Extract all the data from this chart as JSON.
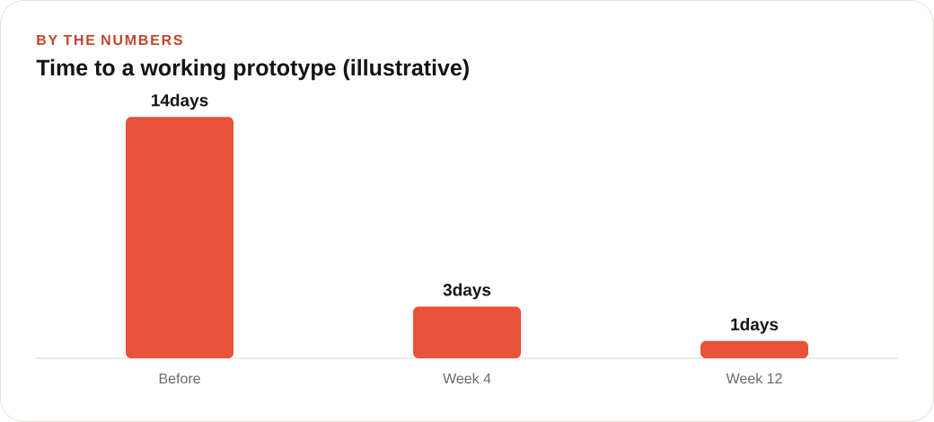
{
  "chart_data": {
    "type": "bar",
    "subtitle": "BY THE NUMBERS",
    "title": "Time to a working prototype (illustrative)",
    "categories": [
      "Before",
      "Week 4",
      "Week 12"
    ],
    "values": [
      14,
      3,
      1
    ],
    "color": "#e8513a",
    "value_labels": [
      "14days",
      "3days",
      "1days"
    ]
  }
}
